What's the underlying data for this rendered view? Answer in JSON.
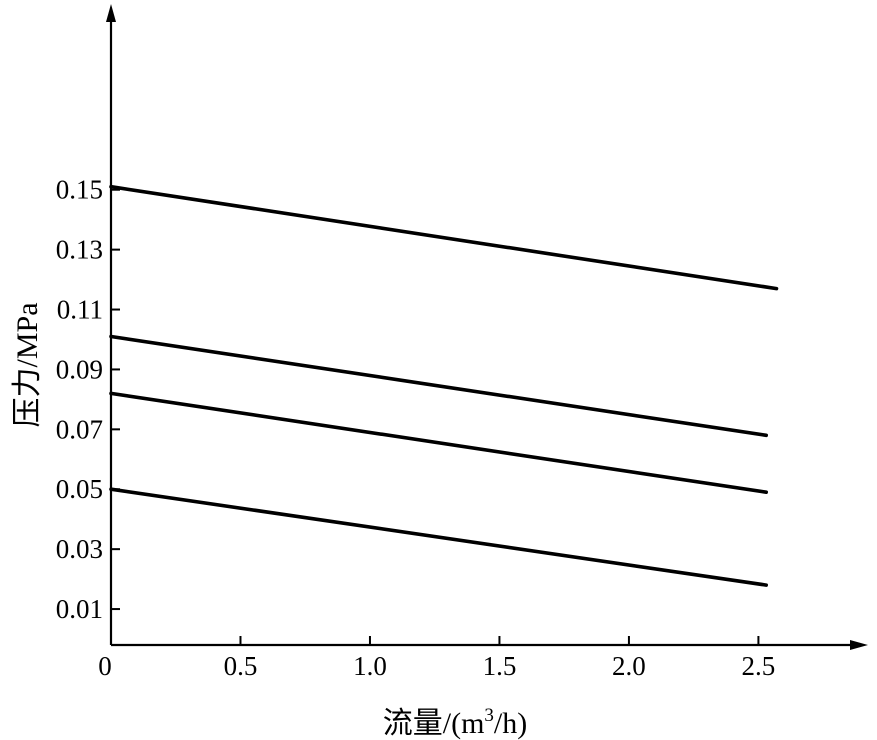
{
  "chart_data": {
    "type": "line",
    "title": "",
    "xlabel": "流量/(m3/h)",
    "xlabel_parts": {
      "main": "流量/(m",
      "sup": "3",
      "tail": "/h)"
    },
    "ylabel": "压力/MPa",
    "xlim": [
      0,
      2.9
    ],
    "ylim": [
      -0.002,
      0.21
    ],
    "x_ticks": [
      0,
      0.5,
      1.0,
      1.5,
      2.0,
      2.5
    ],
    "x_tick_labels": [
      "0",
      "0.5",
      "1.0",
      "1.5",
      "2.0",
      "2.5"
    ],
    "y_ticks": [
      0.01,
      0.03,
      0.05,
      0.07,
      0.09,
      0.11,
      0.13,
      0.15
    ],
    "y_tick_labels": [
      "0.01",
      "0.03",
      "0.05",
      "0.07",
      "0.09",
      "0.11",
      "0.13",
      "0.15"
    ],
    "grid": false,
    "legend": false,
    "series": [
      {
        "x": [
          0,
          2.57
        ],
        "y": [
          0.151,
          0.117
        ]
      },
      {
        "x": [
          0,
          2.53
        ],
        "y": [
          0.101,
          0.068
        ]
      },
      {
        "x": [
          0,
          2.53
        ],
        "y": [
          0.082,
          0.049
        ]
      },
      {
        "x": [
          0,
          2.53
        ],
        "y": [
          0.05,
          0.018
        ]
      }
    ]
  }
}
